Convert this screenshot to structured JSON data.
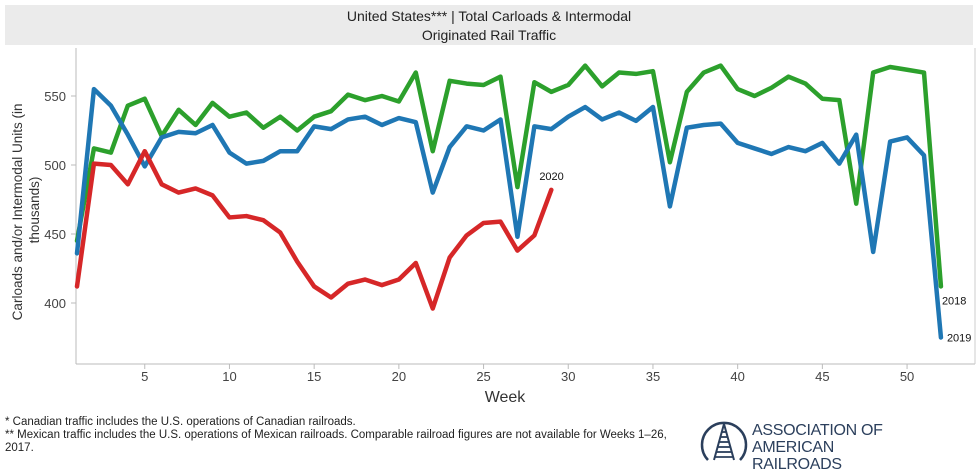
{
  "header": {
    "title": "United States*** | Total Carloads & Intermodal",
    "subtitle": "Originated Rail Traffic"
  },
  "footnotes": [
    "* Canadian traffic includes the U.S. operations of Canadian railroads.",
    "** Mexican traffic includes the U.S. operations of Mexican railroads. Comparable railroad figures are not available for Weeks 1–26, 2017."
  ],
  "logo": {
    "line1": "ASSOCIATION OF",
    "line2": "AMERICAN RAILROADS"
  },
  "chart_data": {
    "type": "line",
    "title": "United States*** | Total Carloads & Intermodal — Originated Rail Traffic",
    "xlabel": "Week",
    "ylabel": "Carloads and/or Intermodal Units (in thousands)",
    "xlim": [
      1,
      52
    ],
    "ylim": [
      365,
      580
    ],
    "xticks": [
      5,
      10,
      15,
      20,
      25,
      30,
      35,
      40,
      45,
      50
    ],
    "yticks": [
      400,
      450,
      500,
      550
    ],
    "grid": false,
    "legend": "end-of-line labels",
    "series": [
      {
        "name": "2018",
        "color": "#2ca02c",
        "x": [
          1,
          2,
          3,
          4,
          5,
          6,
          7,
          8,
          9,
          10,
          11,
          12,
          13,
          14,
          15,
          16,
          17,
          18,
          19,
          20,
          21,
          22,
          23,
          24,
          25,
          26,
          27,
          28,
          29,
          30,
          31,
          32,
          33,
          34,
          35,
          36,
          37,
          38,
          39,
          40,
          41,
          42,
          43,
          44,
          45,
          46,
          47,
          48,
          49,
          50,
          51,
          52
        ],
        "values": [
          445,
          512,
          509,
          543,
          548,
          521,
          540,
          529,
          545,
          535,
          538,
          527,
          535,
          525,
          535,
          539,
          551,
          547,
          550,
          546,
          567,
          510,
          561,
          559,
          558,
          564,
          484,
          560,
          553,
          558,
          572,
          557,
          567,
          566,
          568,
          502,
          553,
          567,
          572,
          555,
          550,
          556,
          564,
          559,
          548,
          547,
          472,
          567,
          571,
          569,
          567,
          412
        ]
      },
      {
        "name": "2019",
        "color": "#1f77b4",
        "x": [
          1,
          2,
          3,
          4,
          5,
          6,
          7,
          8,
          9,
          10,
          11,
          12,
          13,
          14,
          15,
          16,
          17,
          18,
          19,
          20,
          21,
          22,
          23,
          24,
          25,
          26,
          27,
          28,
          29,
          30,
          31,
          32,
          33,
          34,
          35,
          36,
          37,
          38,
          39,
          40,
          41,
          42,
          43,
          44,
          45,
          46,
          47,
          48,
          49,
          50,
          51,
          52
        ],
        "values": [
          436,
          555,
          543,
          522,
          499,
          520,
          524,
          523,
          529,
          509,
          501,
          503,
          510,
          510,
          528,
          526,
          533,
          535,
          529,
          534,
          531,
          480,
          513,
          528,
          525,
          533,
          448,
          528,
          526,
          535,
          542,
          533,
          538,
          532,
          542,
          470,
          527,
          529,
          530,
          516,
          512,
          508,
          513,
          510,
          516,
          501,
          522,
          437,
          517,
          520,
          507,
          375
        ]
      },
      {
        "name": "2020",
        "color": "#d62728",
        "x": [
          1,
          2,
          3,
          4,
          5,
          6,
          7,
          8,
          9,
          10,
          11,
          12,
          13,
          14,
          15,
          16,
          17,
          18,
          19,
          20,
          21,
          22,
          23,
          24,
          25,
          26,
          27,
          28,
          29
        ],
        "values": [
          412,
          501,
          500,
          486,
          510,
          486,
          480,
          483,
          478,
          462,
          463,
          460,
          451,
          430,
          412,
          404,
          414,
          417,
          413,
          417,
          429,
          396,
          433,
          449,
          458,
          459,
          438,
          449,
          482
        ]
      }
    ]
  }
}
